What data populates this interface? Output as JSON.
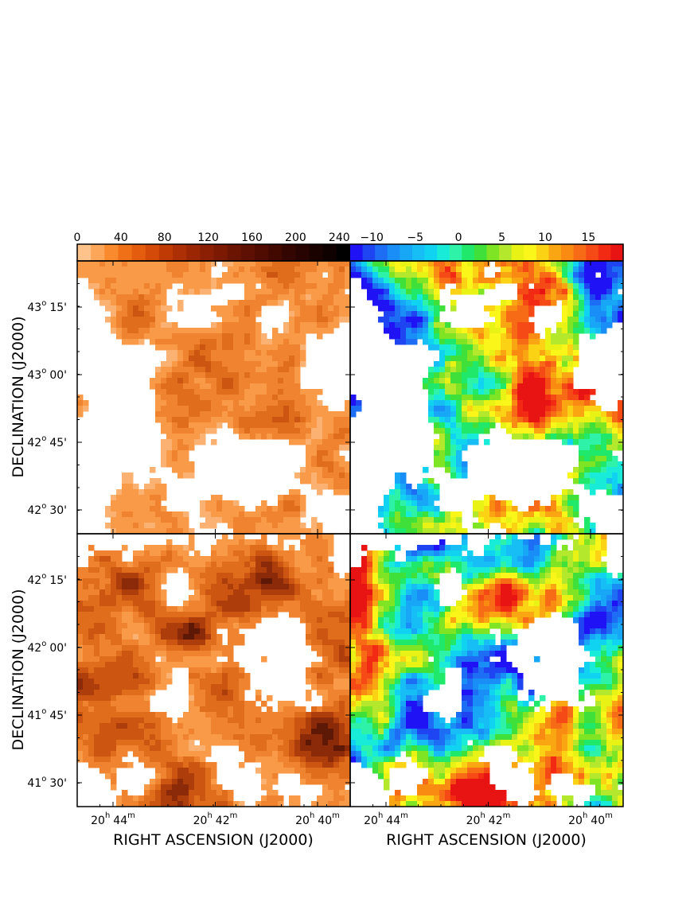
{
  "colorbars": {
    "intensity": {
      "ticks": [
        "0",
        "40",
        "80",
        "120",
        "160",
        "200",
        "240"
      ],
      "tick_values": [
        0,
        40,
        80,
        120,
        160,
        200,
        240
      ],
      "range": [
        0,
        250
      ],
      "colors": [
        "#fdc38a",
        "#fca65a",
        "#f98a2e",
        "#f07018",
        "#e45c0e",
        "#d44a08",
        "#c03a06",
        "#ac2f05",
        "#9a2604",
        "#8a1f03",
        "#7b1902",
        "#6c1402",
        "#5e1002",
        "#500c01",
        "#420901",
        "#340601",
        "#270401",
        "#1a0200",
        "#0e0100",
        "#000000"
      ]
    },
    "velocity": {
      "ticks": [
        "−10",
        "−5",
        "0",
        "5",
        "10",
        "15"
      ],
      "tick_values": [
        -10,
        -5,
        0,
        5,
        10,
        15
      ],
      "range": [
        -12.5,
        19
      ],
      "colors": [
        "#1f12f4",
        "#1f44f2",
        "#1e6ef5",
        "#1a8ef7",
        "#18a6f7",
        "#17bdf5",
        "#10d3f2",
        "#18ecd8",
        "#2ef2a8",
        "#1fe86a",
        "#40e03a",
        "#7ee424",
        "#b4e82c",
        "#e8f214",
        "#fbf61a",
        "#fbd214",
        "#f9a612",
        "#f98a12",
        "#f76a16",
        "#f54a16",
        "#f22a14",
        "#e81414"
      ]
    }
  },
  "axes": {
    "top_row": {
      "ylabel": "DECLINATION (J2000)",
      "y_ticks": [
        {
          "deg": "43",
          "min": "15'",
          "value": 43.25
        },
        {
          "deg": "43",
          "min": "00'",
          "value": 43.0
        },
        {
          "deg": "42",
          "min": "45'",
          "value": 42.75
        },
        {
          "deg": "42",
          "min": "30'",
          "value": 42.5
        }
      ]
    },
    "bottom_row": {
      "ylabel": "DECLINATION (J2000)",
      "y_ticks": [
        {
          "deg": "42",
          "min": "15'",
          "value": 42.25
        },
        {
          "deg": "42",
          "min": "00'",
          "value": 42.0
        },
        {
          "deg": "41",
          "min": "45'",
          "value": 41.75
        },
        {
          "deg": "41",
          "min": "30'",
          "value": 41.5
        }
      ]
    },
    "x_ticks_left": [
      {
        "h": "20",
        "m": "44",
        "value": 44
      },
      {
        "h": "20",
        "m": "42",
        "value": 42
      },
      {
        "h": "20",
        "m": "40",
        "value": 40
      }
    ],
    "x_ticks_right": [
      {
        "h": "20",
        "m": "44",
        "value": 44
      },
      {
        "h": "20",
        "m": "42",
        "value": 42
      },
      {
        "h": "20",
        "m": "40",
        "value": 40
      }
    ],
    "xlabel_left": "RIGHT ASCENSION (J2000)",
    "xlabel_right": "RIGHT ASCENSION (J2000)",
    "sup_deg": "o",
    "sup_h": "h",
    "sup_m": "m"
  },
  "panels": [
    {
      "id": "top-left",
      "kind": "intensity",
      "seed": 11,
      "threshold": 0.47,
      "level_base": 0.05,
      "level_gain": 0.3
    },
    {
      "id": "top-right",
      "kind": "velocity",
      "seed": 11,
      "threshold": 0.47
    },
    {
      "id": "bottom-left",
      "kind": "intensity",
      "seed": 29,
      "threshold": 0.36,
      "level_base": 0.08,
      "level_gain": 0.42
    },
    {
      "id": "bottom-right",
      "kind": "velocity",
      "seed": 29,
      "threshold": 0.36
    }
  ]
}
